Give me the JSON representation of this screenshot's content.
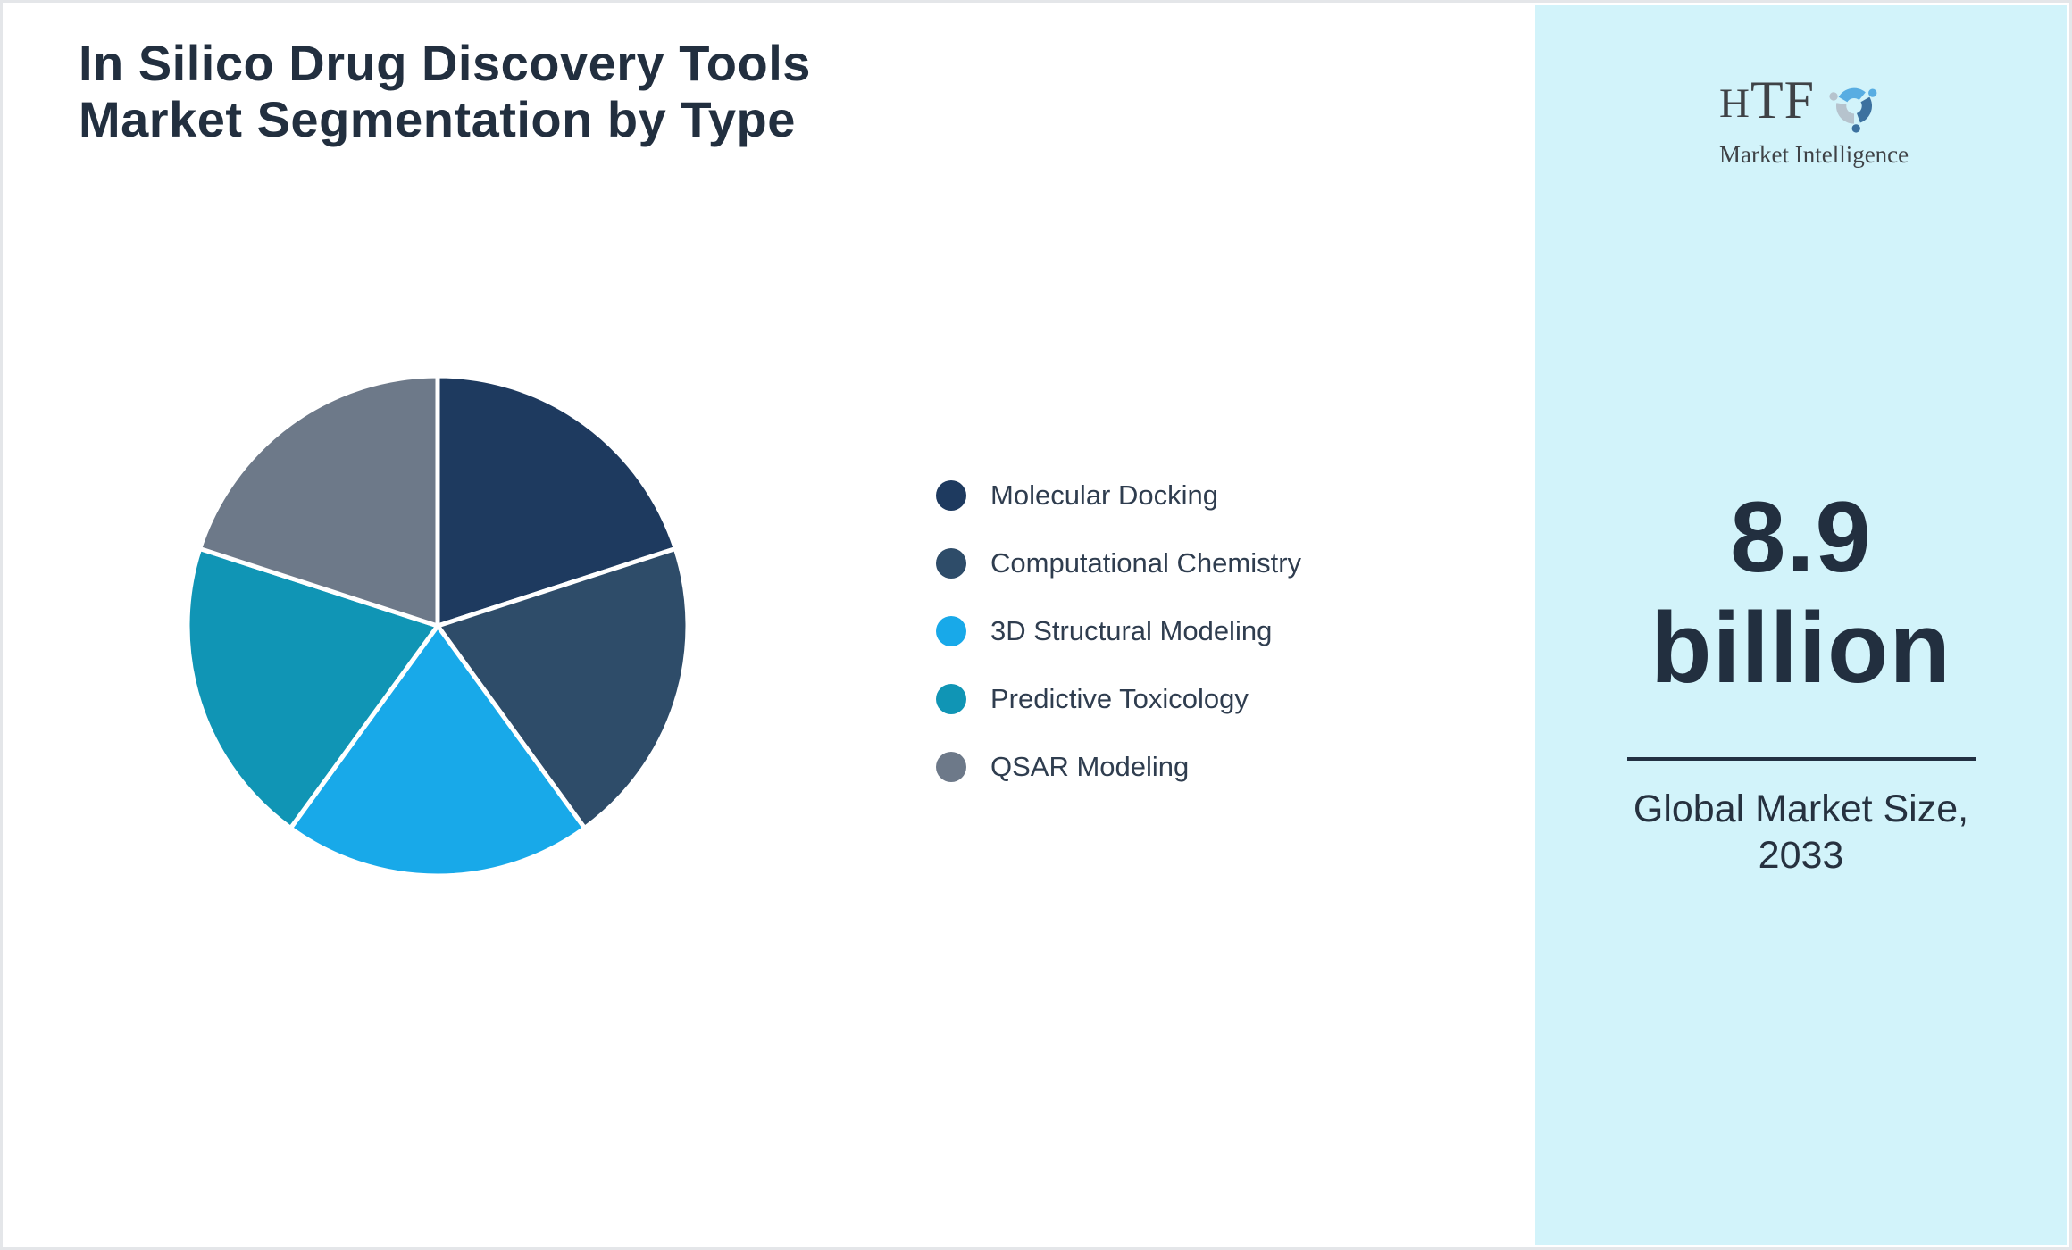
{
  "title": {
    "line1": "In Silico Drug Discovery Tools",
    "line2": "Market Segmentation by Type"
  },
  "logo": {
    "brand_h": "H",
    "brand_tf": "TF",
    "subtitle": "Market Intelligence",
    "swirl_colors": [
      "#58ade2",
      "#3c719f",
      "#b6c3cd"
    ]
  },
  "sidebar": {
    "background": "#d2f3fa",
    "market_value_line1": "8.9",
    "market_value_line2": "billion",
    "caption_line1": "Global Market Size,",
    "caption_line2": "2033"
  },
  "chart_data": {
    "type": "pie",
    "title": "In Silico Drug Discovery Tools Market Segmentation by Type",
    "labels": [
      "Molecular Docking",
      "Computational Chemistry",
      "3D Structural Modeling",
      "Predictive Toxicology",
      "QSAR Modeling"
    ],
    "values": [
      20,
      20,
      20,
      20,
      20
    ],
    "unit": "percent-share (equal fifths, no data labels shown)",
    "colors": [
      "#1e3a5f",
      "#2e4c69",
      "#18a9e9",
      "#1095b5",
      "#6d7989"
    ],
    "start_angle_deg": 0,
    "direction": "clockwise",
    "slice_border_color": "#ffffff",
    "slice_border_width": 5,
    "legend_position": "right"
  }
}
